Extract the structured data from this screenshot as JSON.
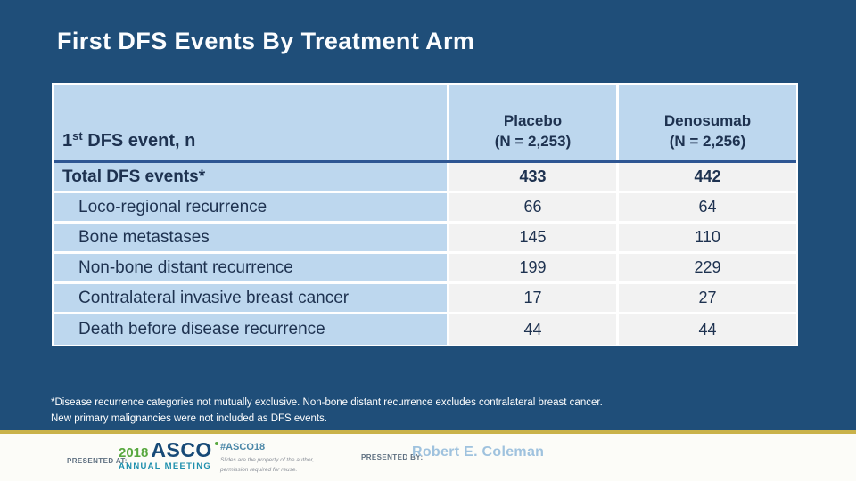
{
  "slide": {
    "title": "First DFS Events By Treatment Arm"
  },
  "table": {
    "header": {
      "label_num": "1",
      "label_sup": "st",
      "label_rest": " DFS event, n",
      "placebo_name": "Placebo",
      "placebo_n": "(N = 2,253)",
      "denosumab_name": "Denosumab",
      "denosumab_n": "(N = 2,256)"
    },
    "rows": [
      {
        "label": "Total DFS events*",
        "placebo": "433",
        "denosumab": "442"
      },
      {
        "label": "Loco-regional recurrence",
        "placebo": "66",
        "denosumab": "64"
      },
      {
        "label": "Bone metastases",
        "placebo": "145",
        "denosumab": "110"
      },
      {
        "label": "Non-bone distant recurrence",
        "placebo": "199",
        "denosumab": "229"
      },
      {
        "label": "Contralateral invasive breast cancer",
        "placebo": "17",
        "denosumab": "27"
      },
      {
        "label": "Death before disease recurrence",
        "placebo": "44",
        "denosumab": "44"
      }
    ]
  },
  "footnote": {
    "line1": "*Disease recurrence categories not mutually exclusive. Non-bone distant recurrence excludes contralateral breast cancer.",
    "line2": "New primary malignancies were not included as DFS events."
  },
  "footer": {
    "presented_at_label": "PRESENTED AT:",
    "logo": {
      "year": "2018",
      "org": "ASCO",
      "meeting": "ANNUAL MEETING"
    },
    "hashtag": "#ASCO18",
    "disclaimer_line1": "Slides are the property of the author,",
    "disclaimer_line2": "permission required for reuse.",
    "presented_by_label": "PRESENTED BY:",
    "presenter": "Robert E. Coleman"
  },
  "colors": {
    "background_navy": "#1F4E79",
    "table_header_blue": "#BDD7EE",
    "table_cell_gray": "#F2F2F2",
    "header_divider_blue": "#2E5693",
    "gold_line": "#C9B24A",
    "logo_green": "#58A83F",
    "logo_navy": "#174A77",
    "logo_teal": "#1E8FAD",
    "presenter_blue": "#9FC2DE"
  },
  "chart_data": {
    "type": "table",
    "title": "First DFS Events By Treatment Arm",
    "columns": [
      "1st DFS event, n",
      "Placebo (N = 2,253)",
      "Denosumab (N = 2,256)"
    ],
    "rows": [
      [
        "Total DFS events*",
        433,
        442
      ],
      [
        "Loco-regional recurrence",
        66,
        64
      ],
      [
        "Bone metastases",
        145,
        110
      ],
      [
        "Non-bone distant recurrence",
        199,
        229
      ],
      [
        "Contralateral invasive breast cancer",
        17,
        27
      ],
      [
        "Death before disease recurrence",
        44,
        44
      ]
    ]
  }
}
